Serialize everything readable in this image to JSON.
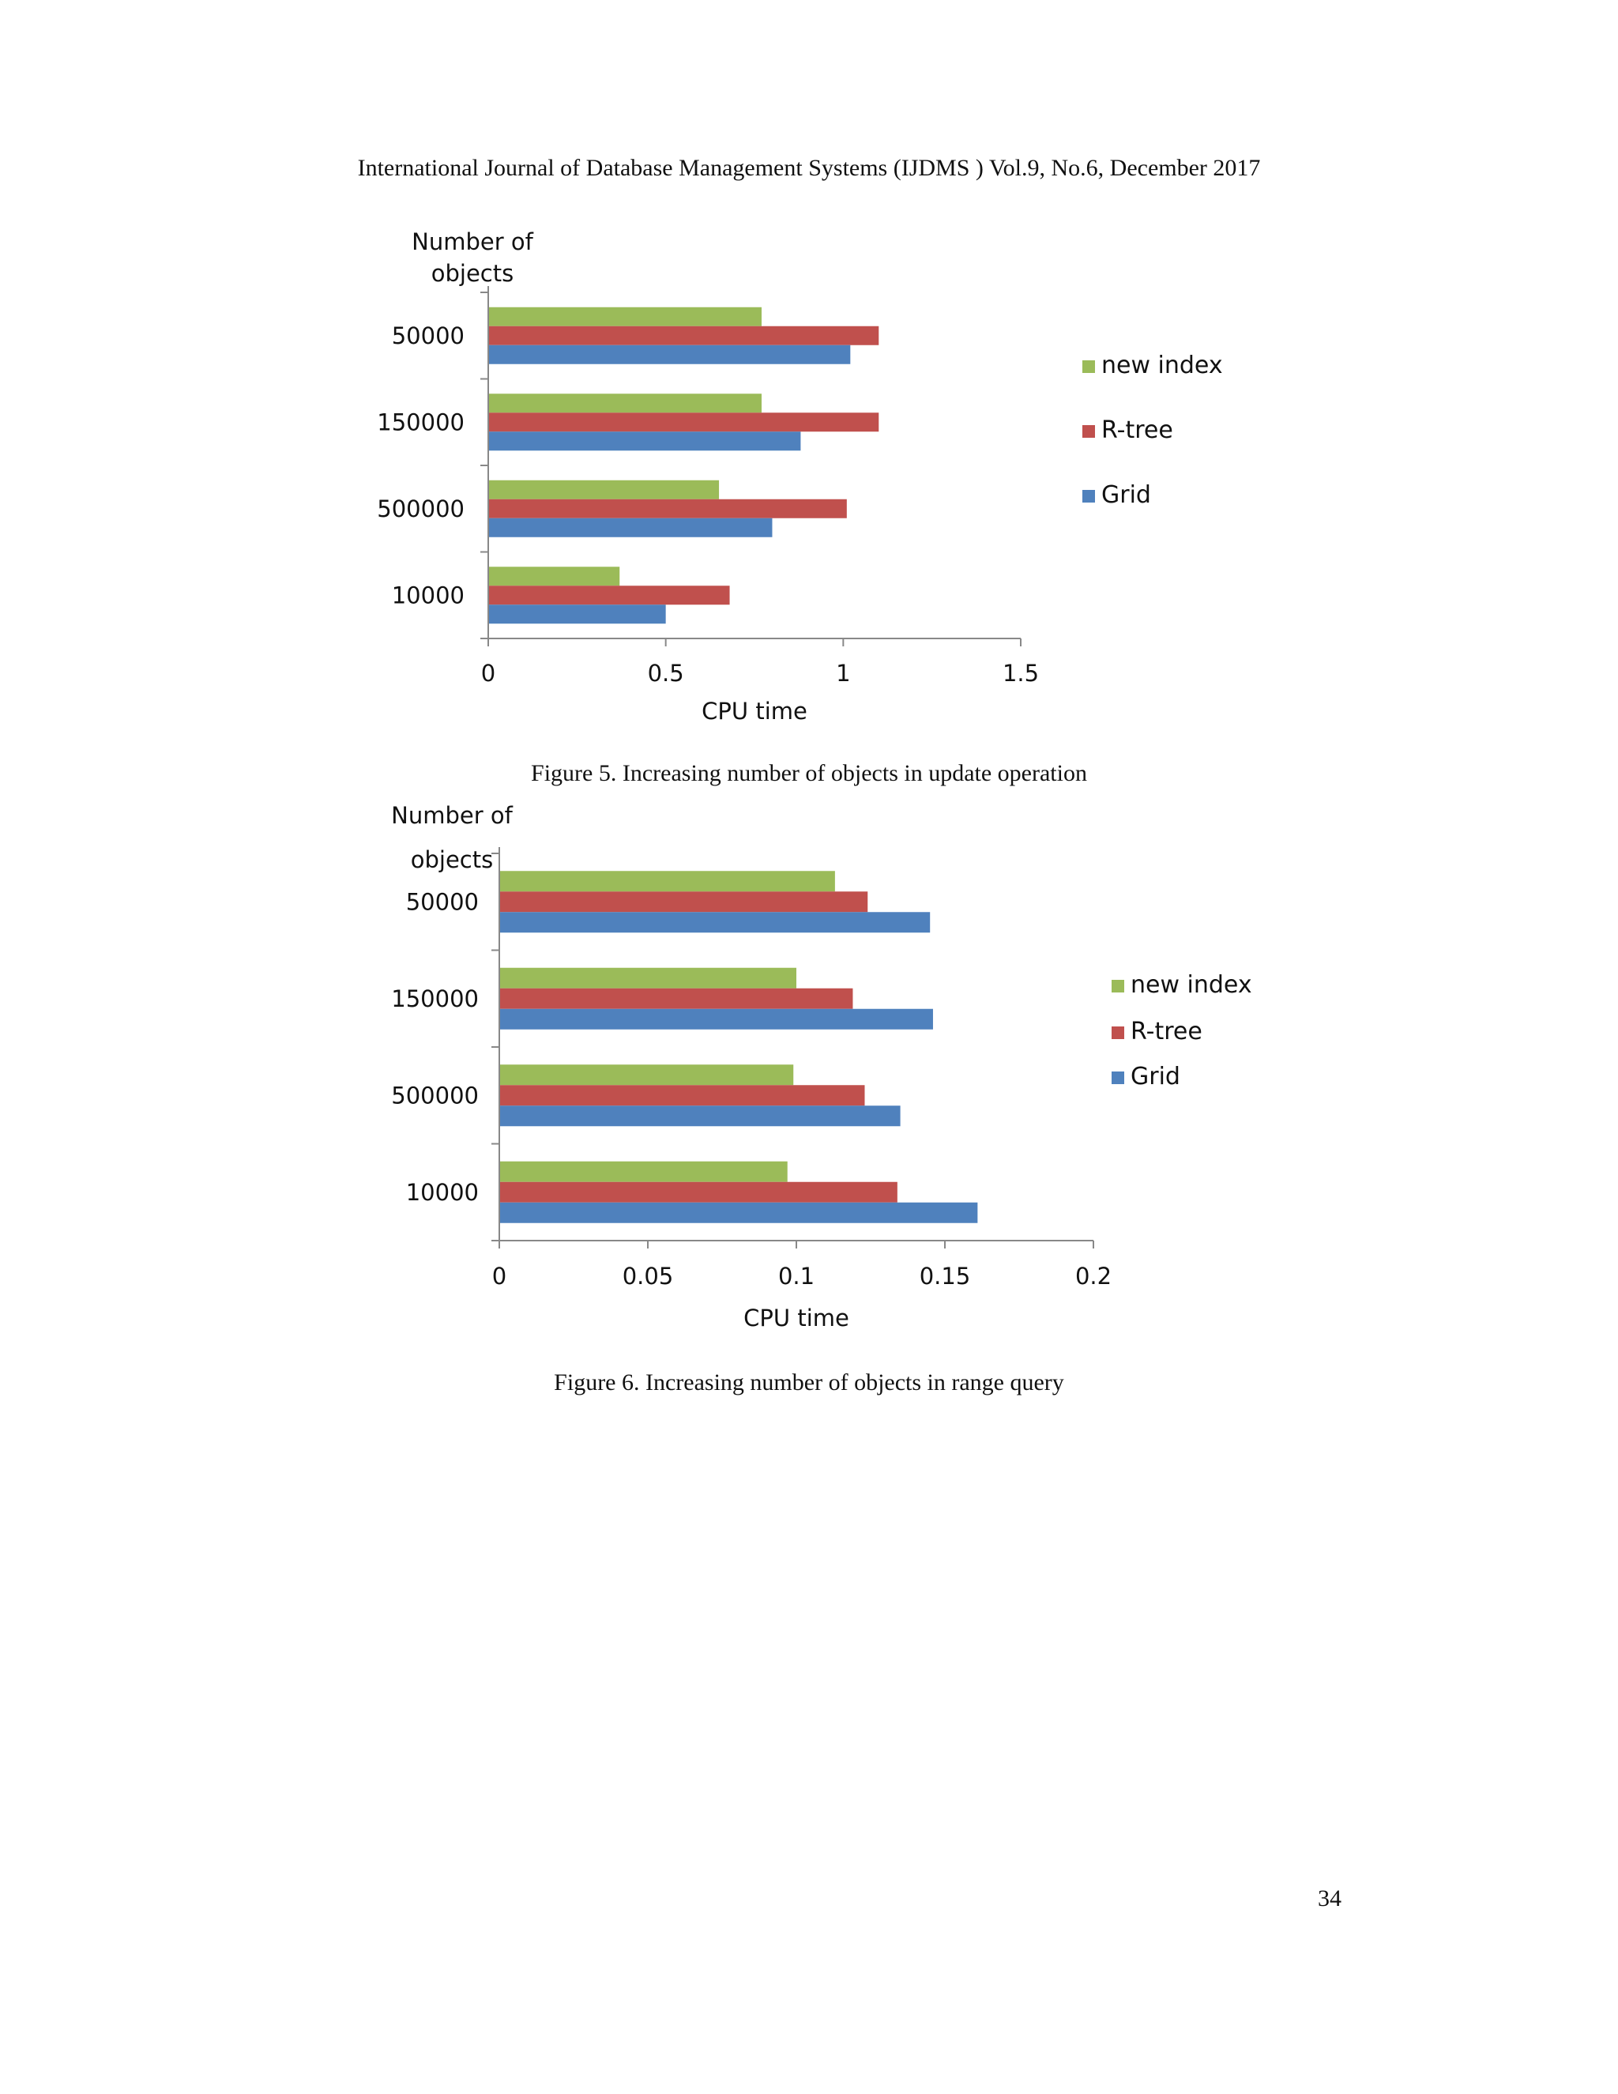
{
  "page": {
    "header": "International Journal of Database Management Systems (IJDMS ) Vol.9, No.6, December 2017",
    "page_number": "34"
  },
  "figures": [
    {
      "caption": "Figure 5. Increasing number of objects in update operation"
    },
    {
      "caption": "Figure 6. Increasing number of objects in range query"
    }
  ],
  "colors": {
    "new index": "#9BBB59",
    "R-tree": "#C0504D",
    "Grid": "#4F81BD"
  },
  "chart_data": [
    {
      "type": "bar",
      "orientation": "horizontal",
      "title": "",
      "xlabel": "CPU time",
      "ylabel": "Number of objects",
      "categories": [
        "50000",
        "150000",
        "500000",
        "10000"
      ],
      "xlim": [
        0,
        1.5
      ],
      "xticks": [
        "0",
        "0.5",
        "1",
        "1.5"
      ],
      "grid": false,
      "legend_position": "right",
      "series": [
        {
          "name": "new index",
          "color": "#9BBB59",
          "values": [
            0.77,
            0.77,
            0.65,
            0.37
          ]
        },
        {
          "name": "R-tree",
          "color": "#C0504D",
          "values": [
            1.1,
            1.1,
            1.01,
            0.68
          ]
        },
        {
          "name": "Grid",
          "color": "#4F81BD",
          "values": [
            1.02,
            0.88,
            0.8,
            0.5
          ]
        }
      ]
    },
    {
      "type": "bar",
      "orientation": "horizontal",
      "title": "",
      "xlabel": "CPU time",
      "ylabel": "Number of objects",
      "categories": [
        "50000",
        "150000",
        "500000",
        "10000"
      ],
      "xlim": [
        0,
        0.2
      ],
      "xticks": [
        "0",
        "0.05",
        "0.1",
        "0.15",
        "0.2"
      ],
      "grid": false,
      "legend_position": "right",
      "series": [
        {
          "name": "new index",
          "color": "#9BBB59",
          "values": [
            0.113,
            0.1,
            0.099,
            0.097
          ]
        },
        {
          "name": "R-tree",
          "color": "#C0504D",
          "values": [
            0.124,
            0.119,
            0.123,
            0.134
          ]
        },
        {
          "name": "Grid",
          "color": "#4F81BD",
          "values": [
            0.145,
            0.146,
            0.135,
            0.161
          ]
        }
      ]
    }
  ]
}
